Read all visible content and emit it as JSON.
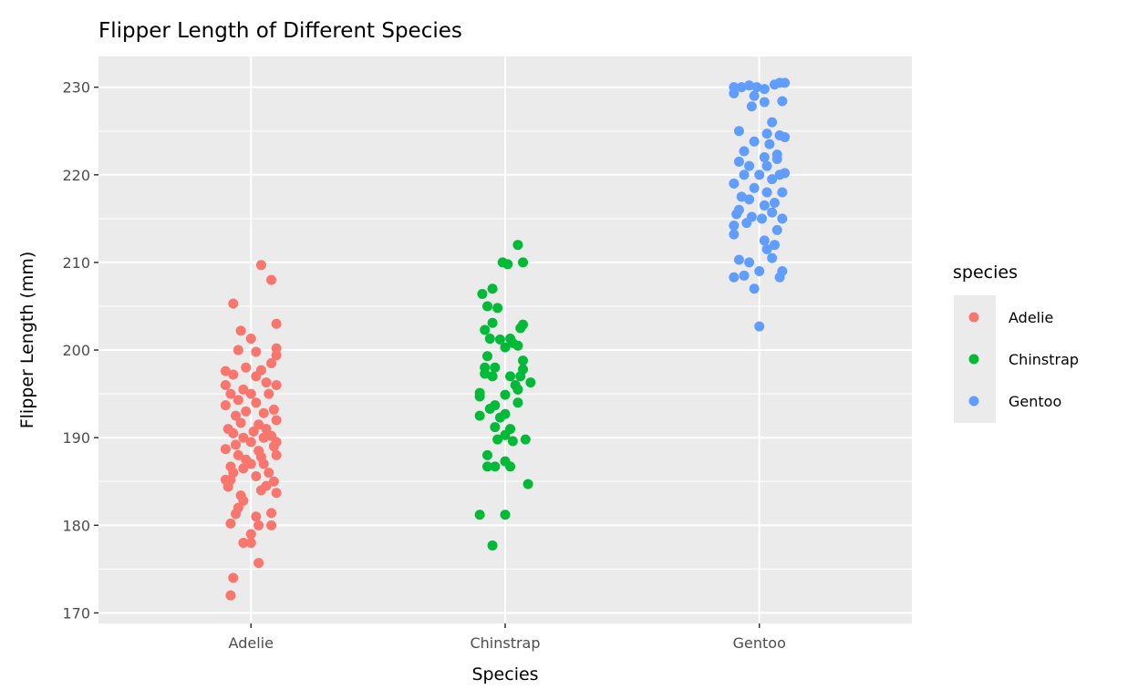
{
  "chart_data": {
    "type": "scatter",
    "subtype": "jitter",
    "title": "Flipper Length of Different Species",
    "xlabel": "Species",
    "ylabel": "Flipper Length (mm)",
    "categories": [
      "Adelie",
      "Chinstrap",
      "Gentoo"
    ],
    "ylim": [
      168.8,
      233.5
    ],
    "yticks": [
      170,
      180,
      190,
      200,
      210,
      220,
      230
    ],
    "ytick_labels": [
      "170",
      "180",
      "190",
      "200",
      "210",
      "220",
      "230"
    ],
    "grid": true,
    "legend": {
      "title": "species",
      "placement": "right",
      "entries": [
        "Adelie",
        "Chinstrap",
        "Gentoo"
      ]
    },
    "colors": {
      "Adelie": "#F8766D",
      "Chinstrap": "#00BA38",
      "Gentoo": "#619CFF"
    },
    "point_format": "[jitter offset in category units, flipper length mm]",
    "series": [
      {
        "name": "Adelie",
        "points": [
          [
            -0.08,
            172
          ],
          [
            -0.07,
            174
          ],
          [
            0.03,
            175.7
          ],
          [
            -0.03,
            178
          ],
          [
            0,
            178
          ],
          [
            0,
            179
          ],
          [
            0.03,
            180
          ],
          [
            0.08,
            180
          ],
          [
            -0.08,
            180.2
          ],
          [
            0.02,
            181
          ],
          [
            -0.06,
            181.3
          ],
          [
            0.08,
            181.4
          ],
          [
            -0.05,
            182
          ],
          [
            -0.03,
            182.8
          ],
          [
            -0.04,
            183.4
          ],
          [
            0.1,
            183.7
          ],
          [
            0.04,
            184
          ],
          [
            -0.09,
            184.4
          ],
          [
            0.06,
            184.5
          ],
          [
            -0.1,
            185.2
          ],
          [
            -0.08,
            185.2
          ],
          [
            0.09,
            185
          ],
          [
            0.02,
            185.6
          ],
          [
            -0.07,
            186
          ],
          [
            0.07,
            186
          ],
          [
            -0.03,
            186.5
          ],
          [
            -0.08,
            186.7
          ],
          [
            0.05,
            187
          ],
          [
            0,
            187
          ],
          [
            -0.02,
            187.5
          ],
          [
            0.04,
            187.8
          ],
          [
            0.1,
            188
          ],
          [
            -0.05,
            188
          ],
          [
            0.03,
            188.5
          ],
          [
            -0.1,
            188.7
          ],
          [
            0.09,
            189
          ],
          [
            -0.06,
            189.2
          ],
          [
            0,
            189.5
          ],
          [
            0.1,
            189.5
          ],
          [
            -0.03,
            190
          ],
          [
            0.05,
            190
          ],
          [
            0.08,
            190.2
          ],
          [
            -0.07,
            190.5
          ],
          [
            0.01,
            190.7
          ],
          [
            -0.09,
            191
          ],
          [
            0.06,
            191
          ],
          [
            0.03,
            191.5
          ],
          [
            -0.04,
            191.7
          ],
          [
            0.1,
            192
          ],
          [
            -0.06,
            192.5
          ],
          [
            0.05,
            192.8
          ],
          [
            -0.02,
            193
          ],
          [
            0.09,
            193.2
          ],
          [
            -0.1,
            193.7
          ],
          [
            0.02,
            194
          ],
          [
            -0.05,
            194.3
          ],
          [
            0.07,
            195
          ],
          [
            -0.08,
            195
          ],
          [
            0,
            195
          ],
          [
            -0.03,
            195.5
          ],
          [
            0.1,
            196
          ],
          [
            0.06,
            196.3
          ],
          [
            -0.1,
            196
          ],
          [
            0.02,
            197
          ],
          [
            -0.07,
            197.2
          ],
          [
            -0.1,
            197.6
          ],
          [
            0.04,
            197.7
          ],
          [
            -0.02,
            198
          ],
          [
            0.08,
            198.5
          ],
          [
            0.1,
            199.4
          ],
          [
            0.02,
            199.8
          ],
          [
            0.1,
            200.2
          ],
          [
            -0.05,
            200
          ],
          [
            0,
            201.3
          ],
          [
            -0.04,
            202.2
          ],
          [
            0.1,
            203
          ],
          [
            -0.07,
            205.3
          ],
          [
            0.08,
            208
          ],
          [
            0.04,
            209.7
          ]
        ]
      },
      {
        "name": "Chinstrap",
        "points": [
          [
            -0.1,
            181.2
          ],
          [
            0,
            181.2
          ],
          [
            -0.05,
            177.7
          ],
          [
            0.09,
            184.7
          ],
          [
            -0.07,
            186.7
          ],
          [
            -0.04,
            186.7
          ],
          [
            0.02,
            186.7
          ],
          [
            -0.07,
            188
          ],
          [
            0,
            187.3
          ],
          [
            0.08,
            189.8
          ],
          [
            0.03,
            189.6
          ],
          [
            -0.03,
            189.8
          ],
          [
            0,
            190.3
          ],
          [
            0.02,
            191
          ],
          [
            -0.04,
            191.2
          ],
          [
            -0.02,
            192.3
          ],
          [
            -0.1,
            192.5
          ],
          [
            0,
            192.7
          ],
          [
            -0.06,
            193.3
          ],
          [
            -0.04,
            193.7
          ],
          [
            0.05,
            194
          ],
          [
            -0.1,
            194.7
          ],
          [
            -0.1,
            195.1
          ],
          [
            0,
            194.9
          ],
          [
            0.05,
            195.5
          ],
          [
            0.04,
            196
          ],
          [
            0.1,
            196.3
          ],
          [
            -0.05,
            197
          ],
          [
            -0.08,
            197.3
          ],
          [
            0.02,
            197
          ],
          [
            0.06,
            197
          ],
          [
            -0.08,
            198
          ],
          [
            -0.04,
            198
          ],
          [
            0.07,
            197.8
          ],
          [
            -0.07,
            199.3
          ],
          [
            0.07,
            198.8
          ],
          [
            0,
            200.3
          ],
          [
            0.03,
            200.8
          ],
          [
            0.05,
            200.5
          ],
          [
            -0.06,
            201.3
          ],
          [
            -0.02,
            201.2
          ],
          [
            0.02,
            201.3
          ],
          [
            0.06,
            202.5
          ],
          [
            0.07,
            202.9
          ],
          [
            -0.08,
            202.3
          ],
          [
            -0.05,
            203.1
          ],
          [
            -0.03,
            204.8
          ],
          [
            -0.07,
            205
          ],
          [
            -0.09,
            206.4
          ],
          [
            -0.05,
            207
          ],
          [
            -0.01,
            210
          ],
          [
            0.01,
            209.8
          ],
          [
            0.07,
            210
          ],
          [
            0.05,
            212
          ]
        ]
      },
      {
        "name": "Gentoo",
        "points": [
          [
            0,
            202.7
          ],
          [
            -0.02,
            207
          ],
          [
            -0.1,
            208.3
          ],
          [
            -0.06,
            208.5
          ],
          [
            0.08,
            208.3
          ],
          [
            0.09,
            209
          ],
          [
            0,
            209
          ],
          [
            -0.08,
            210.3
          ],
          [
            -0.04,
            210
          ],
          [
            0.05,
            210.5
          ],
          [
            0.03,
            211.5
          ],
          [
            -0.1,
            213.2
          ],
          [
            0.06,
            212
          ],
          [
            0.02,
            212.5
          ],
          [
            0.07,
            213.7
          ],
          [
            -0.1,
            214.2
          ],
          [
            -0.05,
            214.5
          ],
          [
            0.01,
            215
          ],
          [
            0.09,
            215
          ],
          [
            -0.09,
            215.5
          ],
          [
            -0.03,
            215.2
          ],
          [
            0.05,
            215.7
          ],
          [
            -0.08,
            216
          ],
          [
            0.02,
            216.5
          ],
          [
            0.06,
            216.8
          ],
          [
            -0.04,
            217.2
          ],
          [
            -0.07,
            217.5
          ],
          [
            0.03,
            218
          ],
          [
            0.09,
            218
          ],
          [
            -0.1,
            219
          ],
          [
            -0.02,
            218.5
          ],
          [
            0.05,
            219.5
          ],
          [
            -0.06,
            220
          ],
          [
            0,
            220
          ],
          [
            0.08,
            220
          ],
          [
            0.1,
            220.2
          ],
          [
            -0.04,
            221
          ],
          [
            0.03,
            221
          ],
          [
            -0.08,
            221.5
          ],
          [
            0.07,
            221.8
          ],
          [
            0.02,
            222
          ],
          [
            -0.06,
            222.7
          ],
          [
            0.07,
            222.3
          ],
          [
            0.04,
            223.5
          ],
          [
            -0.02,
            223.8
          ],
          [
            0.08,
            224.5
          ],
          [
            0.1,
            224.3
          ],
          [
            0.03,
            224.7
          ],
          [
            0.05,
            226
          ],
          [
            -0.08,
            225
          ],
          [
            -0.03,
            227.8
          ],
          [
            0.02,
            228.3
          ],
          [
            0.09,
            228.4
          ],
          [
            -0.02,
            229
          ],
          [
            -0.1,
            229.3
          ],
          [
            -0.07,
            230
          ],
          [
            -0.1,
            230
          ],
          [
            -0.01,
            230
          ],
          [
            0.02,
            229.8
          ],
          [
            0.06,
            230.3
          ],
          [
            0.08,
            230.5
          ],
          [
            0.1,
            230.5
          ],
          [
            -0.04,
            230.2
          ]
        ]
      }
    ]
  }
}
